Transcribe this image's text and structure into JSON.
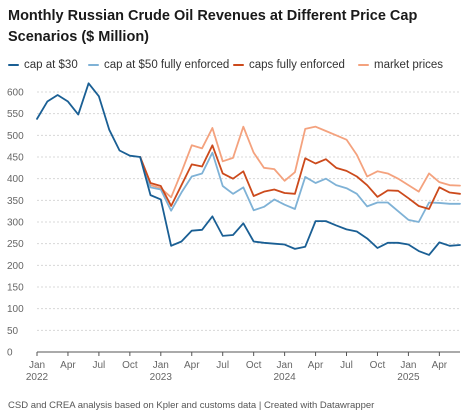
{
  "chart_data": {
    "type": "line",
    "title": "Monthly Russian Crude Oil Revenues at Different Price Cap Scenarios ($ Million)",
    "xlabel": "",
    "ylabel": "",
    "ylim": [
      0,
      600
    ],
    "yticks": [
      0,
      50,
      100,
      150,
      200,
      250,
      300,
      350,
      400,
      450,
      500,
      550,
      600
    ],
    "grid": true,
    "legend_position": "top",
    "x_start": "2022-01",
    "x_end": "2025-06",
    "x_ticks": [
      {
        "month": "2022-01",
        "label": "Jan",
        "year": "2022"
      },
      {
        "month": "2022-04",
        "label": "Apr",
        "year": ""
      },
      {
        "month": "2022-07",
        "label": "Jul",
        "year": ""
      },
      {
        "month": "2022-10",
        "label": "Oct",
        "year": ""
      },
      {
        "month": "2023-01",
        "label": "Jan",
        "year": "2023"
      },
      {
        "month": "2023-04",
        "label": "Apr",
        "year": ""
      },
      {
        "month": "2023-07",
        "label": "Jul",
        "year": ""
      },
      {
        "month": "2023-10",
        "label": "Oct",
        "year": ""
      },
      {
        "month": "2024-01",
        "label": "Jan",
        "year": "2024"
      },
      {
        "month": "2024-04",
        "label": "Apr",
        "year": ""
      },
      {
        "month": "2024-07",
        "label": "Jul",
        "year": ""
      },
      {
        "month": "2024-10",
        "label": "Oct",
        "year": ""
      },
      {
        "month": "2025-01",
        "label": "Jan",
        "year": "2025"
      },
      {
        "month": "2025-04",
        "label": "Apr",
        "year": ""
      }
    ],
    "x": [
      "2022-01",
      "2022-02",
      "2022-03",
      "2022-04",
      "2022-05",
      "2022-06",
      "2022-07",
      "2022-08",
      "2022-09",
      "2022-10",
      "2022-11",
      "2022-12",
      "2023-01",
      "2023-02",
      "2023-03",
      "2023-04",
      "2023-05",
      "2023-06",
      "2023-07",
      "2023-08",
      "2023-09",
      "2023-10",
      "2023-11",
      "2023-12",
      "2024-01",
      "2024-02",
      "2024-03",
      "2024-04",
      "2024-05",
      "2024-06",
      "2024-07",
      "2024-08",
      "2024-09",
      "2024-10",
      "2024-11",
      "2024-12",
      "2025-01",
      "2025-02",
      "2025-03",
      "2025-04",
      "2025-05",
      "2025-06"
    ],
    "series": [
      {
        "name": "cap at $30",
        "color": "#1a5f94",
        "values": [
          538,
          578,
          593,
          578,
          548,
          620,
          590,
          513,
          465,
          453,
          450,
          362,
          352,
          245,
          255,
          280,
          282,
          313,
          268,
          270,
          297,
          255,
          252,
          250,
          248,
          238,
          243,
          302,
          302,
          292,
          283,
          278,
          262,
          240,
          252,
          252,
          248,
          233,
          224,
          253,
          245,
          247
        ]
      },
      {
        "name": "cap at $50 fully enforced",
        "color": "#7fb2d6",
        "values": [
          null,
          null,
          null,
          null,
          null,
          null,
          null,
          null,
          null,
          null,
          450,
          380,
          375,
          326,
          368,
          405,
          412,
          460,
          383,
          365,
          380,
          327,
          335,
          352,
          340,
          330,
          404,
          390,
          400,
          385,
          378,
          365,
          336,
          345,
          345,
          325,
          305,
          300,
          345,
          344,
          342,
          342
        ]
      },
      {
        "name": "caps fully enforced",
        "color": "#cc4a1c",
        "values": [
          null,
          null,
          null,
          null,
          null,
          null,
          null,
          null,
          null,
          null,
          450,
          390,
          383,
          337,
          385,
          433,
          428,
          477,
          412,
          400,
          417,
          360,
          370,
          375,
          367,
          365,
          447,
          435,
          445,
          425,
          418,
          405,
          385,
          358,
          373,
          372,
          355,
          337,
          330,
          380,
          368,
          365
        ]
      },
      {
        "name": "market prices",
        "color": "#f4a27e",
        "values": [
          null,
          null,
          null,
          null,
          null,
          null,
          null,
          null,
          null,
          null,
          450,
          385,
          378,
          357,
          415,
          477,
          470,
          517,
          440,
          448,
          520,
          460,
          425,
          422,
          395,
          415,
          515,
          520,
          510,
          500,
          490,
          455,
          405,
          417,
          412,
          400,
          385,
          370,
          412,
          392,
          385,
          384
        ]
      }
    ]
  },
  "legend": [
    {
      "label": "cap at $30",
      "color": "#1a5f94"
    },
    {
      "label": "cap at $50 fully enforced",
      "color": "#7fb2d6"
    },
    {
      "label": "caps fully enforced",
      "color": "#cc4a1c"
    },
    {
      "label": "market prices",
      "color": "#f4a27e"
    }
  ],
  "footer": "CSD and CREA analysis based on Kpler and customs data | Created with Datawrapper"
}
